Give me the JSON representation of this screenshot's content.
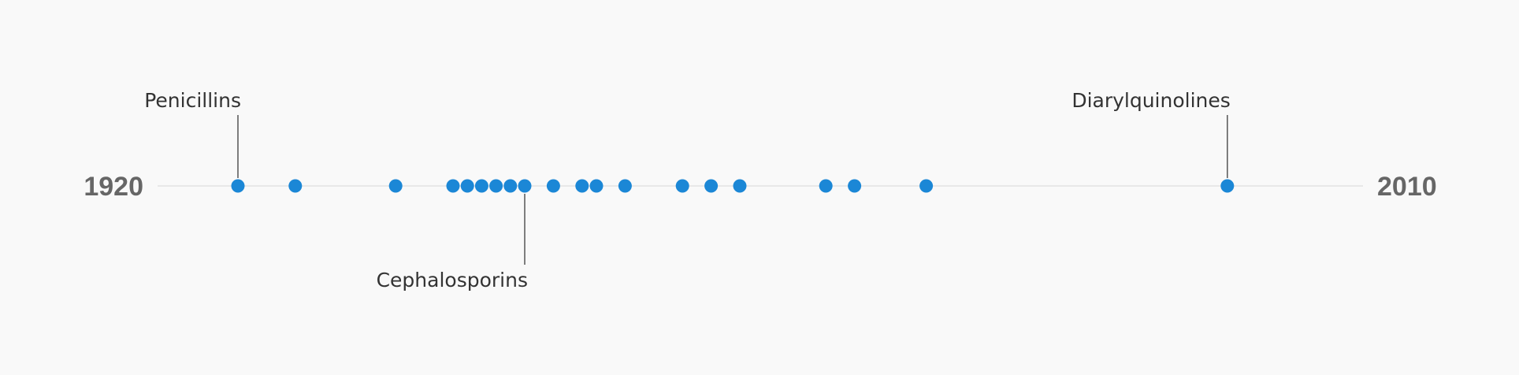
{
  "chart_data": {
    "type": "scatter",
    "xlim": [
      1920,
      2010
    ],
    "start_label": "1920",
    "end_label": "2010",
    "point_color": "#1b87d6",
    "axis_color": "#e2e2e2",
    "points": [
      1926,
      1930,
      1937,
      1941,
      1942,
      1943,
      1944,
      1945,
      1946,
      1948,
      1950,
      1951,
      1953,
      1957,
      1959,
      1961,
      1967,
      1969,
      1974,
      1995
    ],
    "annotations": [
      {
        "text": "Penicillins",
        "x": 1926,
        "side": "above"
      },
      {
        "text": "Cephalosporins",
        "x": 1946,
        "side": "below"
      },
      {
        "text": "Diarylquinolines",
        "x": 1995,
        "side": "above"
      }
    ]
  }
}
